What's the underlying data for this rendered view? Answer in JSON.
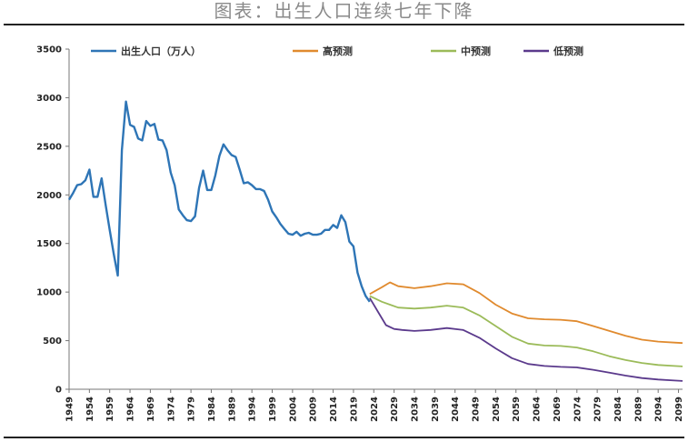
{
  "chart_data": {
    "type": "line",
    "title": "图表：出生人口连续七年下降",
    "xlabel": "",
    "ylabel": "",
    "ylim": [
      0,
      3500
    ],
    "yticks": [
      0,
      500,
      1000,
      1500,
      2000,
      2500,
      3000,
      3500
    ],
    "xlim": [
      1949,
      2100
    ],
    "xticks": [
      1949,
      1954,
      1959,
      1964,
      1969,
      1974,
      1979,
      1984,
      1989,
      1994,
      1999,
      2004,
      2009,
      2014,
      2019,
      2024,
      2029,
      2034,
      2039,
      2044,
      2049,
      2054,
      2059,
      2064,
      2069,
      2074,
      2079,
      2084,
      2089,
      2094,
      2099
    ],
    "grid": false,
    "legend": "top",
    "series": [
      {
        "name": "出生人口（万人）",
        "color": "#2e75b6",
        "points": [
          [
            1949,
            1950
          ],
          [
            1950,
            2020
          ],
          [
            1951,
            2100
          ],
          [
            1952,
            2110
          ],
          [
            1953,
            2150
          ],
          [
            1954,
            2260
          ],
          [
            1955,
            1980
          ],
          [
            1956,
            1980
          ],
          [
            1957,
            2170
          ],
          [
            1958,
            1900
          ],
          [
            1959,
            1640
          ],
          [
            1960,
            1390
          ],
          [
            1961,
            1170
          ],
          [
            1962,
            2460
          ],
          [
            1963,
            2960
          ],
          [
            1964,
            2720
          ],
          [
            1965,
            2700
          ],
          [
            1966,
            2580
          ],
          [
            1967,
            2560
          ],
          [
            1968,
            2760
          ],
          [
            1969,
            2710
          ],
          [
            1970,
            2730
          ],
          [
            1971,
            2570
          ],
          [
            1972,
            2560
          ],
          [
            1973,
            2460
          ],
          [
            1974,
            2230
          ],
          [
            1975,
            2100
          ],
          [
            1976,
            1850
          ],
          [
            1977,
            1790
          ],
          [
            1978,
            1740
          ],
          [
            1979,
            1730
          ],
          [
            1980,
            1780
          ],
          [
            1981,
            2070
          ],
          [
            1982,
            2250
          ],
          [
            1983,
            2050
          ],
          [
            1984,
            2050
          ],
          [
            1985,
            2200
          ],
          [
            1986,
            2400
          ],
          [
            1987,
            2520
          ],
          [
            1988,
            2460
          ],
          [
            1989,
            2410
          ],
          [
            1990,
            2390
          ],
          [
            1991,
            2260
          ],
          [
            1992,
            2120
          ],
          [
            1993,
            2130
          ],
          [
            1994,
            2100
          ],
          [
            1995,
            2060
          ],
          [
            1996,
            2060
          ],
          [
            1997,
            2040
          ],
          [
            1998,
            1950
          ],
          [
            1999,
            1830
          ],
          [
            2000,
            1770
          ],
          [
            2001,
            1700
          ],
          [
            2002,
            1650
          ],
          [
            2003,
            1600
          ],
          [
            2004,
            1590
          ],
          [
            2005,
            1620
          ],
          [
            2006,
            1580
          ],
          [
            2007,
            1600
          ],
          [
            2008,
            1610
          ],
          [
            2009,
            1590
          ],
          [
            2010,
            1590
          ],
          [
            2011,
            1600
          ],
          [
            2012,
            1640
          ],
          [
            2013,
            1640
          ],
          [
            2014,
            1690
          ],
          [
            2015,
            1660
          ],
          [
            2016,
            1790
          ],
          [
            2017,
            1720
          ],
          [
            2018,
            1520
          ],
          [
            2019,
            1470
          ],
          [
            2020,
            1200
          ],
          [
            2021,
            1060
          ],
          [
            2022,
            960
          ],
          [
            2023,
            900
          ]
        ]
      },
      {
        "name": "高预测",
        "color": "#e08a2e",
        "points": [
          [
            2023,
            980
          ],
          [
            2026,
            1050
          ],
          [
            2028,
            1100
          ],
          [
            2030,
            1060
          ],
          [
            2034,
            1040
          ],
          [
            2038,
            1060
          ],
          [
            2042,
            1090
          ],
          [
            2046,
            1080
          ],
          [
            2050,
            990
          ],
          [
            2054,
            870
          ],
          [
            2058,
            780
          ],
          [
            2062,
            730
          ],
          [
            2066,
            720
          ],
          [
            2070,
            715
          ],
          [
            2074,
            700
          ],
          [
            2078,
            650
          ],
          [
            2082,
            600
          ],
          [
            2086,
            550
          ],
          [
            2090,
            510
          ],
          [
            2094,
            490
          ],
          [
            2098,
            480
          ],
          [
            2100,
            475
          ]
        ]
      },
      {
        "name": "中预测",
        "color": "#9bbb59",
        "points": [
          [
            2023,
            960
          ],
          [
            2026,
            900
          ],
          [
            2028,
            870
          ],
          [
            2030,
            840
          ],
          [
            2034,
            830
          ],
          [
            2038,
            840
          ],
          [
            2042,
            860
          ],
          [
            2046,
            840
          ],
          [
            2050,
            760
          ],
          [
            2054,
            650
          ],
          [
            2058,
            540
          ],
          [
            2062,
            470
          ],
          [
            2066,
            450
          ],
          [
            2070,
            445
          ],
          [
            2074,
            430
          ],
          [
            2078,
            390
          ],
          [
            2082,
            340
          ],
          [
            2086,
            300
          ],
          [
            2090,
            270
          ],
          [
            2094,
            250
          ],
          [
            2098,
            240
          ],
          [
            2100,
            235
          ]
        ]
      },
      {
        "name": "低预测",
        "color": "#5b3a8c",
        "points": [
          [
            2023,
            940
          ],
          [
            2025,
            800
          ],
          [
            2027,
            660
          ],
          [
            2029,
            620
          ],
          [
            2031,
            610
          ],
          [
            2034,
            600
          ],
          [
            2038,
            610
          ],
          [
            2042,
            630
          ],
          [
            2046,
            610
          ],
          [
            2050,
            530
          ],
          [
            2054,
            420
          ],
          [
            2058,
            320
          ],
          [
            2062,
            260
          ],
          [
            2066,
            240
          ],
          [
            2070,
            230
          ],
          [
            2074,
            225
          ],
          [
            2078,
            200
          ],
          [
            2082,
            170
          ],
          [
            2086,
            140
          ],
          [
            2090,
            115
          ],
          [
            2094,
            100
          ],
          [
            2098,
            90
          ],
          [
            2100,
            85
          ]
        ]
      }
    ]
  }
}
